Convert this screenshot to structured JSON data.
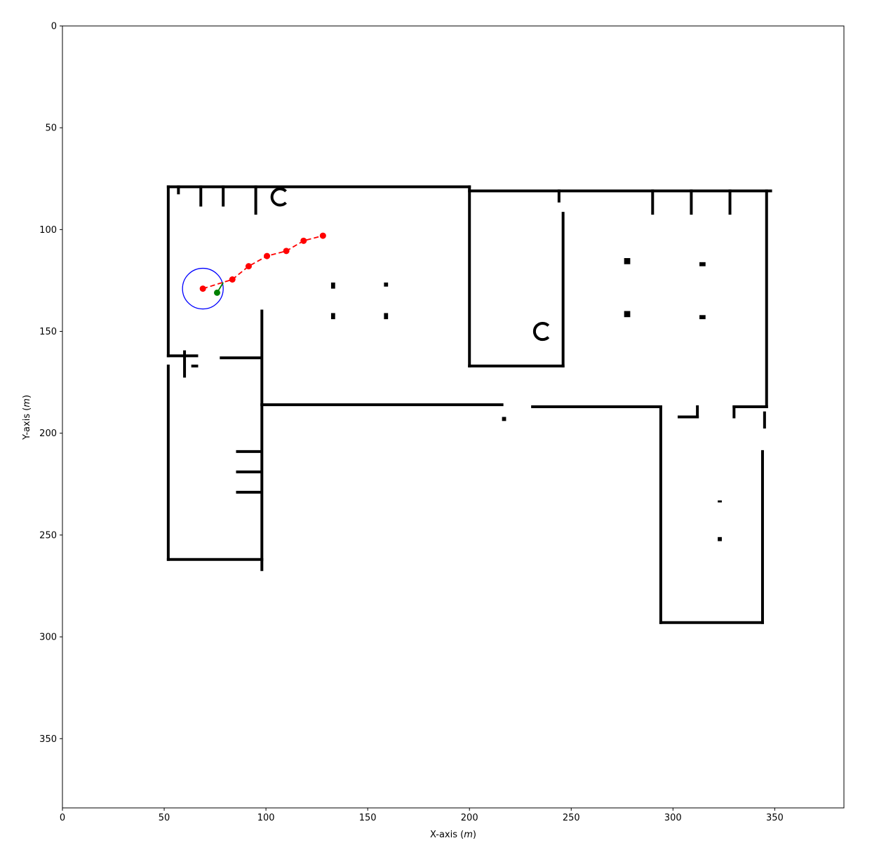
{
  "chart_data": {
    "type": "scatter",
    "title": "",
    "xlabel": "X-axis",
    "ylabel": "Y-axis",
    "xlabel_unit": "m",
    "ylabel_unit": "m",
    "xlim": [
      0,
      384
    ],
    "ylim": [
      384,
      0
    ],
    "y_inverted": true,
    "grid": false,
    "legend": "none",
    "x_ticks": [
      0,
      50,
      100,
      150,
      200,
      250,
      300,
      350
    ],
    "y_ticks": [
      0,
      50,
      100,
      150,
      200,
      250,
      300,
      350
    ],
    "background_map": "occupancy grid floor plan (black walls on white)",
    "series": [
      {
        "style": "red dashed line with circle markers",
        "color": "#ff0000",
        "x": [
          69,
          83.5,
          91.5,
          100.5,
          110,
          118.5,
          128
        ],
        "y": [
          129,
          124.5,
          118,
          113,
          110.5,
          105.5,
          103
        ]
      },
      {
        "style": "green line with circle marker",
        "color": "#008000",
        "x": [
          76,
          79
        ],
        "y": [
          131,
          126
        ]
      }
    ],
    "annotations": [
      {
        "shape": "circle",
        "color": "#0000ff",
        "center": [
          69,
          129
        ],
        "radius": 10
      }
    ],
    "walls": [
      [
        [
          52,
          79
        ],
        [
          200,
          79
        ]
      ],
      [
        [
          200,
          81
        ],
        [
          348,
          81
        ]
      ],
      [
        [
          52,
          79
        ],
        [
          52,
          162
        ]
      ],
      [
        [
          52,
          162
        ],
        [
          66,
          162
        ]
      ],
      [
        [
          52,
          167
        ],
        [
          52,
          262
        ]
      ],
      [
        [
          52,
          262
        ],
        [
          98,
          262
        ]
      ],
      [
        [
          98,
          140
        ],
        [
          98,
          186
        ]
      ],
      [
        [
          98,
          186
        ],
        [
          216,
          186
        ]
      ],
      [
        [
          98,
          186
        ],
        [
          98,
          267
        ]
      ],
      [
        [
          78,
          163
        ],
        [
          97,
          163
        ]
      ],
      [
        [
          64,
          167
        ],
        [
          66,
          167
        ]
      ],
      [
        [
          200,
          79
        ],
        [
          200,
          167
        ]
      ],
      [
        [
          200,
          167
        ],
        [
          246,
          167
        ]
      ],
      [
        [
          246,
          92
        ],
        [
          246,
          167
        ]
      ],
      [
        [
          231,
          187
        ],
        [
          294,
          187
        ]
      ],
      [
        [
          294,
          187
        ],
        [
          294,
          293
        ]
      ],
      [
        [
          294,
          293
        ],
        [
          344,
          293
        ]
      ],
      [
        [
          344,
          209
        ],
        [
          344,
          293
        ]
      ],
      [
        [
          346,
          81
        ],
        [
          346,
          187
        ]
      ],
      [
        [
          330,
          187
        ],
        [
          346,
          187
        ]
      ],
      [
        [
          330,
          187
        ],
        [
          330,
          192
        ]
      ],
      [
        [
          303,
          192
        ],
        [
          312,
          192
        ]
      ],
      [
        [
          312,
          187
        ],
        [
          312,
          192
        ]
      ],
      [
        [
          345,
          190
        ],
        [
          345,
          197
        ]
      ],
      [
        [
          68,
          79
        ],
        [
          68,
          88
        ]
      ],
      [
        [
          79,
          79
        ],
        [
          79,
          88
        ]
      ],
      [
        [
          95,
          79
        ],
        [
          95,
          92
        ]
      ],
      [
        [
          290,
          81
        ],
        [
          290,
          92
        ]
      ],
      [
        [
          309,
          81
        ],
        [
          309,
          92
        ]
      ],
      [
        [
          328,
          81
        ],
        [
          328,
          92
        ]
      ],
      [
        [
          244,
          81
        ],
        [
          244,
          86
        ]
      ],
      [
        [
          86,
          209
        ],
        [
          97,
          209
        ]
      ],
      [
        [
          86,
          219
        ],
        [
          97,
          219
        ]
      ],
      [
        [
          86,
          229
        ],
        [
          97,
          229
        ]
      ],
      [
        [
          57,
          79
        ],
        [
          57,
          82
        ]
      ],
      [
        [
          60,
          160
        ],
        [
          60,
          172
        ]
      ]
    ],
    "blocks": [
      [
        132,
        126,
        134,
        129
      ],
      [
        158,
        126,
        160,
        128
      ],
      [
        132,
        141,
        134,
        144
      ],
      [
        158,
        141,
        160,
        144
      ],
      [
        276,
        114,
        279,
        117
      ],
      [
        313,
        116,
        316,
        118
      ],
      [
        276,
        140,
        279,
        143
      ],
      [
        313,
        142,
        316,
        144
      ],
      [
        322,
        233,
        324,
        234
      ],
      [
        322,
        251,
        324,
        253
      ],
      [
        216,
        192,
        218,
        194
      ]
    ],
    "arcs": [
      {
        "center": [
          236,
          150
        ],
        "radius": 4
      },
      {
        "center": [
          107,
          84
        ],
        "radius": 4
      }
    ]
  }
}
